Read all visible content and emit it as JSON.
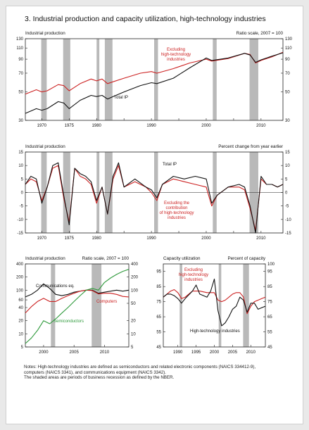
{
  "page": {
    "title": "3.  Industrial production and capacity utilization, high-technology industries",
    "notes": [
      "Notes:  High-technology industries are defined as semiconductors and related electronic components (NAICS 334412-9),",
      "computers (NAICS 3341), and communications equipment (NAICS 3342).",
      "The shaded areas are periods of business recession as defined by the NBER."
    ]
  },
  "colors": {
    "red": "#cc2222",
    "black": "#111111",
    "green": "#2f9a3c",
    "recession": "#b9b9b9"
  },
  "chart_data": [
    {
      "id": "top",
      "type": "line",
      "title_left": "Industrial production",
      "title_right": "Ratio scale, 2007 = 100",
      "log_scale": true,
      "xlim": [
        1967,
        2014
      ],
      "ylim": [
        30,
        130
      ],
      "yticks": [
        30,
        50,
        70,
        90,
        110,
        130
      ],
      "xticks": [
        1970,
        1975,
        1980,
        1985,
        1990,
        1995,
        2000,
        2005,
        2010
      ],
      "xtick_labels": [
        "1970",
        "1975",
        "1980",
        "",
        "1990",
        "",
        "2000",
        "",
        "2010"
      ],
      "recessions": [
        [
          1969.9,
          1970.9
        ],
        [
          1973.9,
          1975.2
        ],
        [
          1980.0,
          1980.5
        ],
        [
          1981.5,
          1982.9
        ],
        [
          1990.5,
          1991.2
        ],
        [
          2001.2,
          2001.9
        ],
        [
          2007.9,
          2009.5
        ]
      ],
      "series": [
        {
          "name": "Excluding high-technology industries",
          "color_key": "red",
          "x": [
            1967,
            1969,
            1970,
            1971,
            1973,
            1974,
            1975,
            1977,
            1979,
            1980,
            1981,
            1982,
            1983,
            1985,
            1988,
            1990,
            1991,
            1994,
            1997,
            2000,
            2001,
            2004,
            2007,
            2008,
            2009,
            2010,
            2012,
            2014
          ],
          "y": [
            48,
            52,
            50,
            51,
            57,
            56,
            51,
            58,
            63,
            61,
            63,
            58,
            60,
            64,
            70,
            72,
            70,
            76,
            84,
            90,
            87,
            91,
            100,
            98,
            84,
            88,
            94,
            102
          ]
        },
        {
          "name": "Total IP",
          "color_key": "black",
          "x": [
            1967,
            1969,
            1970,
            1971,
            1973,
            1974,
            1975,
            1977,
            1979,
            1980,
            1981,
            1982,
            1983,
            1985,
            1988,
            1990,
            1991,
            1994,
            1997,
            2000,
            2001,
            2004,
            2007,
            2008,
            2009,
            2010,
            2012,
            2014
          ],
          "y": [
            34,
            37,
            36,
            37,
            42,
            41,
            37,
            43,
            47,
            46,
            47,
            44,
            46,
            50,
            56,
            59,
            58,
            64,
            77,
            92,
            88,
            92,
            100,
            97,
            85,
            89,
            95,
            101
          ]
        }
      ],
      "annotations": [
        {
          "text": "Excluding",
          "series": "red"
        },
        {
          "text": "high-technology",
          "series": "red"
        },
        {
          "text": "industries",
          "series": "red"
        },
        {
          "text": "Total IP",
          "series": "black"
        }
      ]
    },
    {
      "id": "middle",
      "type": "line",
      "title_left": "Industrial production",
      "title_right": "Percent change from year earlier",
      "xlim": [
        1967,
        2014
      ],
      "ylim": [
        -15,
        15
      ],
      "yticks": [
        -15,
        -10,
        -5,
        0,
        5,
        10,
        15
      ],
      "xticks": [
        1970,
        1975,
        1980,
        1985,
        1990,
        1995,
        2000,
        2005,
        2010
      ],
      "xtick_labels": [
        "1970",
        "1975",
        "1980",
        "",
        "1990",
        "",
        "2000",
        "",
        "2010"
      ],
      "recessions": [
        [
          1969.9,
          1970.9
        ],
        [
          1973.9,
          1975.2
        ],
        [
          1980.0,
          1980.5
        ],
        [
          1981.5,
          1982.9
        ],
        [
          1990.5,
          1991.2
        ],
        [
          2001.2,
          2001.9
        ],
        [
          2007.9,
          2009.5
        ]
      ],
      "series": [
        {
          "name": "Excluding the contribution of high-technology industries",
          "color_key": "red",
          "x": [
            1967,
            1968,
            1969,
            1970,
            1971,
            1972,
            1973,
            1974,
            1975,
            1976,
            1977,
            1978,
            1979,
            1980,
            1981,
            1982,
            1983,
            1984,
            1985,
            1987,
            1989,
            1990,
            1991,
            1992,
            1994,
            1996,
            1998,
            2000,
            2001,
            2002,
            2004,
            2006,
            2007,
            2008,
            2009,
            2010,
            2011,
            2012,
            2013,
            2014
          ],
          "y": [
            3,
            5,
            4,
            -3,
            2,
            9,
            10,
            -2,
            -11,
            9,
            6,
            5,
            3,
            -4,
            2,
            -8,
            5,
            10,
            2,
            4,
            2,
            0,
            -3,
            3,
            5,
            4,
            3,
            2,
            -5,
            -1,
            2,
            2,
            1,
            -6,
            -14,
            5,
            3,
            3,
            2,
            3
          ]
        },
        {
          "name": "Total IP",
          "color_key": "black",
          "x": [
            1967,
            1968,
            1969,
            1970,
            1971,
            1972,
            1973,
            1974,
            1975,
            1976,
            1977,
            1978,
            1979,
            1980,
            1981,
            1982,
            1983,
            1984,
            1985,
            1987,
            1989,
            1990,
            1991,
            1992,
            1994,
            1996,
            1998,
            2000,
            2001,
            2002,
            2004,
            2006,
            2007,
            2008,
            2009,
            2010,
            2011,
            2012,
            2013,
            2014
          ],
          "y": [
            3,
            6,
            5,
            -4,
            2,
            10,
            11,
            -1,
            -12,
            9,
            7,
            6,
            4,
            -3,
            2,
            -8,
            6,
            11,
            2,
            5,
            2,
            1,
            -2,
            3,
            6,
            5,
            6,
            5,
            -4,
            -1,
            2,
            3,
            2,
            -5,
            -15,
            6,
            3,
            3,
            2,
            3
          ]
        }
      ],
      "annotations": [
        {
          "text": "Total IP",
          "series": "black"
        },
        {
          "text": "Excluding the",
          "series": "red"
        },
        {
          "text": "contribution",
          "series": "red"
        },
        {
          "text": "of high-technology",
          "series": "red"
        },
        {
          "text": "industries",
          "series": "red"
        }
      ]
    },
    {
      "id": "bottom-left",
      "type": "line",
      "title_left": "Industrial production",
      "title_right": "Ratio scale, 2007 = 100",
      "log_scale": true,
      "xlim": [
        1997,
        2014
      ],
      "ylim": [
        5,
        400
      ],
      "yticks_left": [
        5,
        10,
        20,
        40,
        60,
        100,
        200,
        400
      ],
      "yticks_right": [
        5,
        10,
        20,
        50,
        100,
        200,
        400
      ],
      "xticks": [
        2000,
        2005,
        2010
      ],
      "recessions": [
        [
          2001.2,
          2001.9
        ],
        [
          2007.9,
          2009.5
        ]
      ],
      "series": [
        {
          "name": "Communications eq.",
          "color_key": "black",
          "x": [
            1997,
            1998,
            1999,
            2000,
            2001,
            2002,
            2003,
            2004,
            2005,
            2006,
            2007,
            2008,
            2009,
            2010,
            2011,
            2012,
            2013,
            2014
          ],
          "y": [
            70,
            80,
            100,
            140,
            110,
            80,
            75,
            80,
            90,
            95,
            100,
            100,
            85,
            90,
            95,
            100,
            95,
            100
          ]
        },
        {
          "name": "Computers",
          "color_key": "red",
          "x": [
            1997,
            1998,
            1999,
            2000,
            2001,
            2002,
            2003,
            2004,
            2005,
            2006,
            2007,
            2008,
            2009,
            2010,
            2011,
            2012,
            2013,
            2014
          ],
          "y": [
            30,
            42,
            55,
            65,
            55,
            55,
            65,
            75,
            85,
            95,
            100,
            98,
            82,
            85,
            85,
            80,
            72,
            70
          ]
        },
        {
          "name": "Semiconductors",
          "color_key": "green",
          "x": [
            1997,
            1998,
            1999,
            2000,
            2001,
            2002,
            2003,
            2004,
            2005,
            2006,
            2007,
            2008,
            2009,
            2010,
            2011,
            2012,
            2013,
            2014
          ],
          "y": [
            6,
            8,
            12,
            20,
            17,
            22,
            30,
            40,
            55,
            75,
            100,
            110,
            100,
            150,
            190,
            230,
            270,
            300
          ]
        }
      ],
      "annotations": [
        {
          "text": "Communications eq.",
          "series": "black"
        },
        {
          "text": "Computers",
          "series": "red"
        },
        {
          "text": "Semiconductors",
          "series": "green"
        }
      ]
    },
    {
      "id": "bottom-right",
      "type": "line",
      "title_left": "Capacity utilization",
      "title_right": "Percent of capacity",
      "xlim": [
        1986,
        2014
      ],
      "ylim": [
        45,
        100
      ],
      "yticks_left": [
        45,
        55,
        65,
        75,
        85,
        95
      ],
      "yticks_right": [
        45,
        55,
        65,
        75,
        85,
        95,
        100
      ],
      "ytick_labels_left": [
        "45",
        "55",
        "65",
        "75",
        "85",
        "95"
      ],
      "xticks": [
        1990,
        1995,
        2000,
        2005,
        2010
      ],
      "recessions": [
        [
          1990.5,
          1991.2
        ],
        [
          2001.2,
          2001.9
        ],
        [
          2007.9,
          2009.5
        ]
      ],
      "series": [
        {
          "name": "Excluding high-technology industries",
          "color_key": "red",
          "x": [
            1986,
            1988,
            1989,
            1990,
            1991,
            1992,
            1994,
            1996,
            1998,
            2000,
            2001,
            2002,
            2003,
            2005,
            2006,
            2007,
            2008,
            2009,
            2010,
            2011,
            2012,
            2013,
            2014
          ],
          "y": [
            78,
            82,
            83,
            81,
            77,
            78,
            82,
            82,
            81,
            81,
            76,
            75,
            76,
            80,
            81,
            81,
            78,
            67,
            72,
            75,
            76,
            77,
            78
          ]
        },
        {
          "name": "High-technology industries",
          "color_key": "black",
          "x": [
            1986,
            1987,
            1988,
            1989,
            1990,
            1991,
            1992,
            1994,
            1995,
            1996,
            1998,
            1999,
            2000,
            2001,
            2002,
            2003,
            2004,
            2005,
            2006,
            2007,
            2008,
            2009,
            2010,
            2011,
            2012,
            2013,
            2014
          ],
          "y": [
            78,
            80,
            80,
            79,
            77,
            74,
            77,
            82,
            86,
            80,
            78,
            82,
            90,
            69,
            59,
            61,
            65,
            70,
            72,
            78,
            76,
            68,
            74,
            74,
            70,
            71,
            72
          ]
        }
      ],
      "annotations": [
        {
          "text": "Excluding",
          "series": "red"
        },
        {
          "text": "high-technology",
          "series": "red"
        },
        {
          "text": "industries",
          "series": "red"
        },
        {
          "text": "High-technology industries",
          "series": "black"
        }
      ]
    }
  ]
}
